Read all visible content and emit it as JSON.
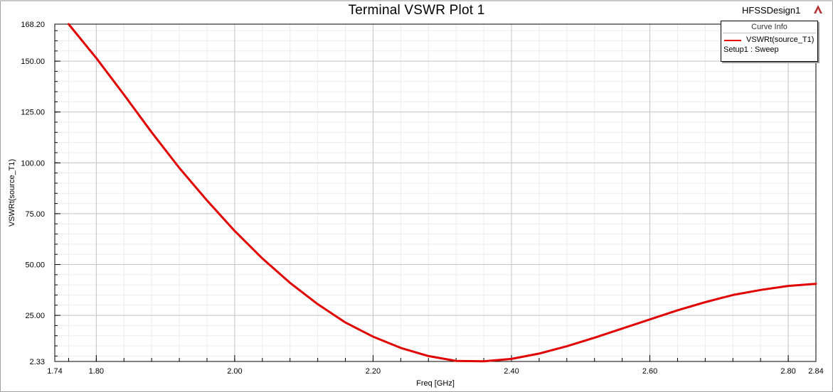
{
  "window": {
    "title": "Terminal VSWR Plot 1",
    "design_name": "HFSSDesign1",
    "logo_icon": "ansys-logo-icon"
  },
  "legend": {
    "title": "Curve Info",
    "series_label": "VSWRt(source_T1)",
    "setup_label": "Setup1 : Sweep"
  },
  "chart_data": {
    "type": "line",
    "title": "Terminal VSWR Plot 1",
    "xlabel": "Freq [GHz]",
    "ylabel": "VSWRt(source_T1)",
    "xlim": [
      1.74,
      2.84
    ],
    "ylim": [
      2.33,
      168.2
    ],
    "x_ticks": [
      1.74,
      1.8,
      2.0,
      2.2,
      2.4,
      2.6,
      2.8,
      2.84
    ],
    "x_tick_labels": [
      "1.74",
      "1.80",
      "2.00",
      "2.20",
      "2.40",
      "2.60",
      "2.80",
      "2.84"
    ],
    "y_ticks": [
      2.33,
      25.0,
      50.0,
      75.0,
      100.0,
      125.0,
      150.0,
      168.2
    ],
    "y_tick_labels": [
      "2.33",
      "25.00",
      "50.00",
      "75.00",
      "100.00",
      "125.00",
      "150.00",
      "168.20"
    ],
    "grid": true,
    "series": [
      {
        "name": "VSWRt(source_T1)",
        "color": "#e00000",
        "x": [
          1.76,
          1.8,
          1.84,
          1.88,
          1.92,
          1.96,
          2.0,
          2.04,
          2.08,
          2.12,
          2.16,
          2.2,
          2.24,
          2.28,
          2.32,
          2.36,
          2.4,
          2.44,
          2.48,
          2.52,
          2.56,
          2.6,
          2.64,
          2.68,
          2.72,
          2.76,
          2.8,
          2.84
        ],
        "y": [
          168.2,
          151.5,
          133.5,
          115.0,
          97.5,
          81.5,
          66.5,
          53.0,
          41.0,
          30.5,
          21.5,
          14.5,
          9.0,
          5.0,
          2.6,
          2.4,
          3.6,
          6.2,
          9.8,
          14.0,
          18.5,
          23.0,
          27.5,
          31.5,
          35.0,
          37.5,
          39.5,
          40.5
        ]
      }
    ]
  }
}
